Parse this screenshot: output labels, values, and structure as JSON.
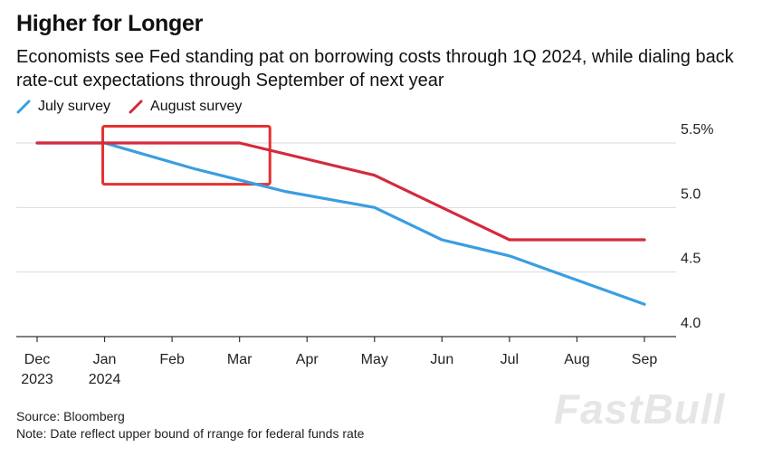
{
  "header": {
    "title": "Higher for Longer",
    "subtitle": "Economists see Fed standing pat on borrowing costs through 1Q 2024, while dialing back rate-cut expectations through September of next year"
  },
  "legend": {
    "items": [
      {
        "label": "July survey",
        "color": "#3a9ee0"
      },
      {
        "label": "August survey",
        "color": "#d42a3d"
      }
    ]
  },
  "chart_data": {
    "type": "line",
    "title": "Higher for Longer",
    "xlabel": "",
    "ylabel": "",
    "categories": [
      "Dec 2023",
      "Jan 2024",
      "Feb",
      "Mar",
      "Apr",
      "May",
      "Jun",
      "Jul",
      "Aug",
      "Sep"
    ],
    "x_tick_labels": [
      {
        "line1": "Dec",
        "line2": "2023"
      },
      {
        "line1": "Jan",
        "line2": "2024"
      },
      {
        "line1": "Feb",
        "line2": ""
      },
      {
        "line1": "Mar",
        "line2": ""
      },
      {
        "line1": "Apr",
        "line2": ""
      },
      {
        "line1": "May",
        "line2": ""
      },
      {
        "line1": "Jun",
        "line2": ""
      },
      {
        "line1": "Jul",
        "line2": ""
      },
      {
        "line1": "Aug",
        "line2": ""
      },
      {
        "line1": "Sep",
        "line2": ""
      }
    ],
    "series": [
      {
        "name": "July survey",
        "color": "#3a9ee0",
        "points": [
          {
            "x": 0,
            "y": 5.5
          },
          {
            "x": 1,
            "y": 5.5
          },
          {
            "x": 2.33,
            "y": 5.3
          },
          {
            "x": 3.67,
            "y": 5.125
          },
          {
            "x": 5,
            "y": 5.0
          },
          {
            "x": 6,
            "y": 4.75
          },
          {
            "x": 7,
            "y": 4.625
          },
          {
            "x": 9,
            "y": 4.25
          }
        ]
      },
      {
        "name": "August survey",
        "color": "#d42a3d",
        "points": [
          {
            "x": 0,
            "y": 5.5
          },
          {
            "x": 1,
            "y": 5.5
          },
          {
            "x": 3,
            "y": 5.5
          },
          {
            "x": 5,
            "y": 5.25
          },
          {
            "x": 7,
            "y": 4.75
          },
          {
            "x": 9,
            "y": 4.75
          }
        ]
      }
    ],
    "y_ticks": [
      {
        "value": 5.5,
        "label": "5.5%"
      },
      {
        "value": 5.0,
        "label": "5.0"
      },
      {
        "value": 4.5,
        "label": "4.5"
      },
      {
        "value": 4.0,
        "label": "4.0"
      }
    ],
    "ylim": [
      4.0,
      5.5
    ],
    "grid": true,
    "legend_position": "top-left",
    "annotation": {
      "type": "highlight-box",
      "x_range": [
        1,
        3.45
      ],
      "y_range": [
        5.18,
        5.63
      ],
      "color": "#e5312f"
    }
  },
  "footer": {
    "source": "Source: Bloomberg",
    "note": "Note: Date reflect upper bound of rrange for federal funds rate"
  },
  "watermark": "FastBull"
}
